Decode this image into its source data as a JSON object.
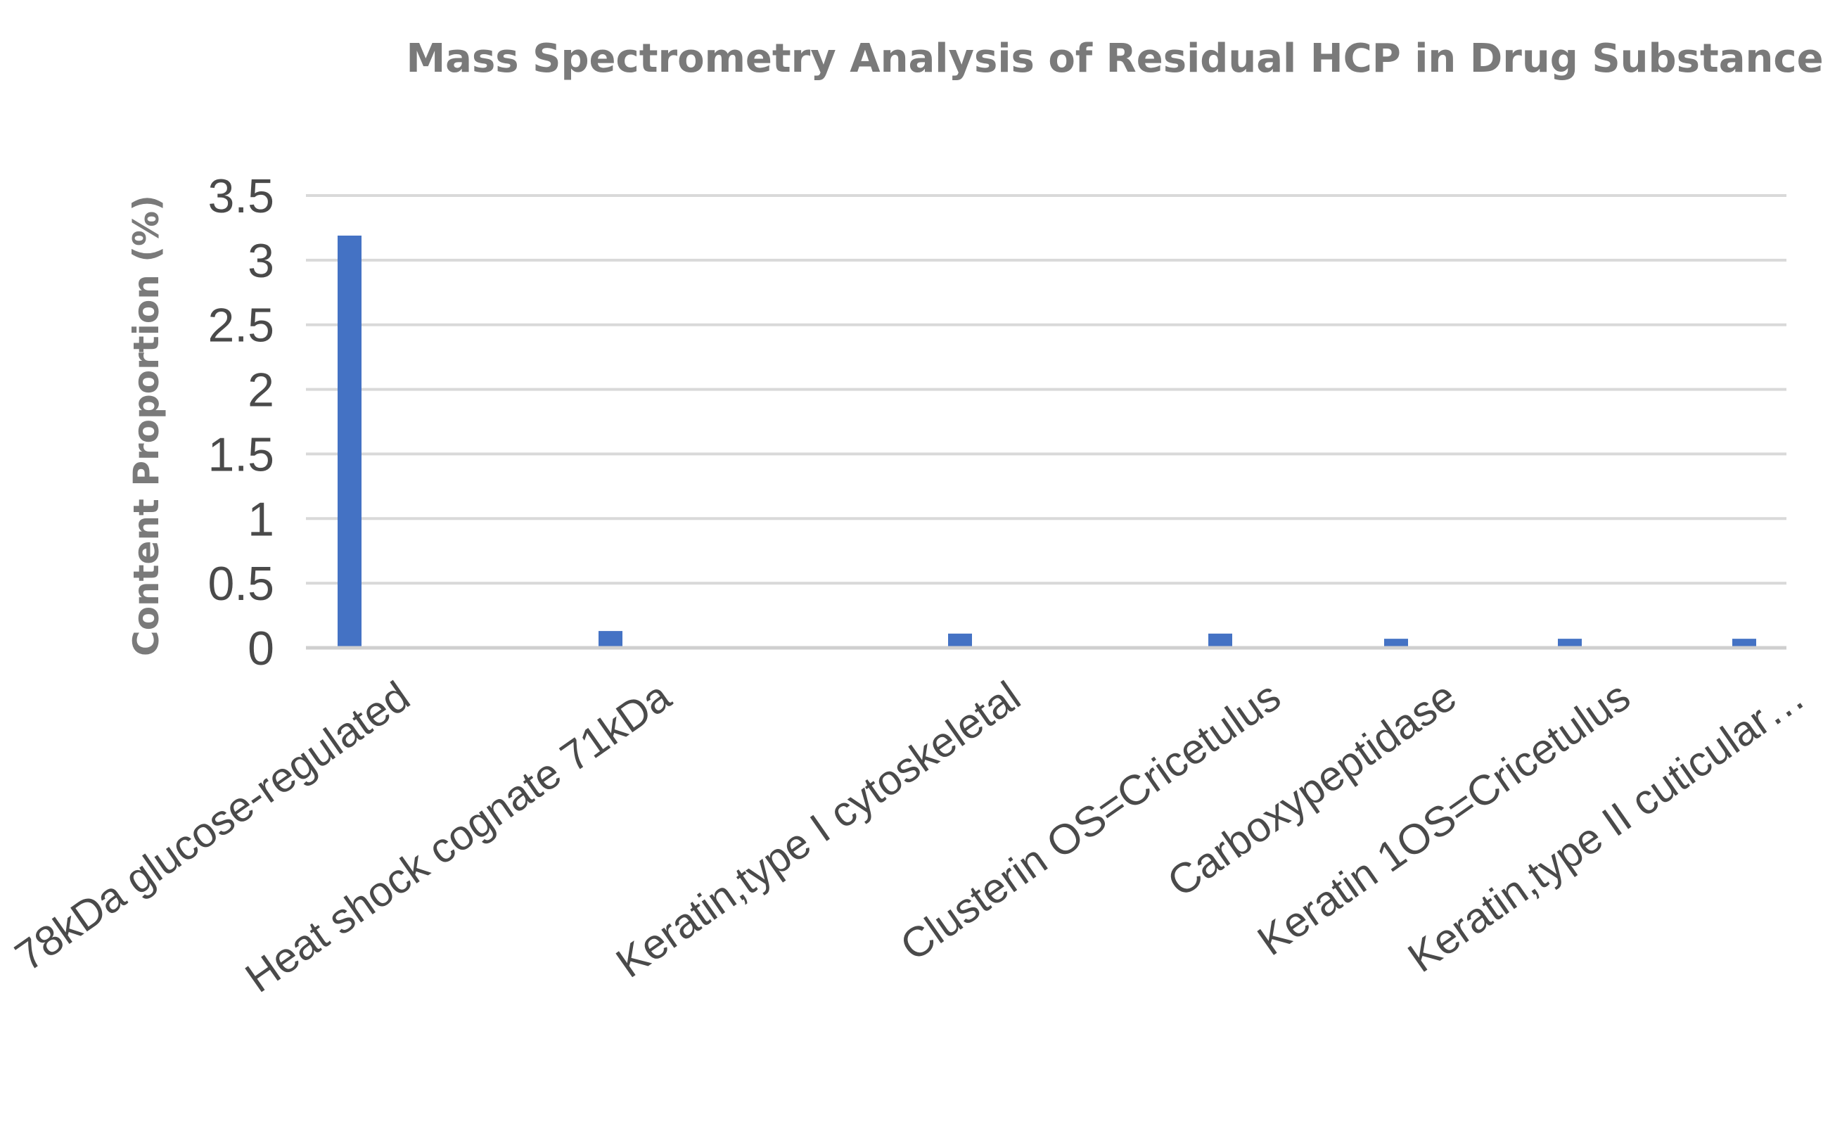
{
  "chart_data": {
    "type": "bar",
    "title": "Mass Spectrometry Analysis of Residual HCP in Drug Substance",
    "xlabel": "",
    "ylabel": "Content Proportion (%)",
    "ylim": [
      0,
      3.5
    ],
    "yticks": [
      "0",
      "0.5",
      "1",
      "1.5",
      "2",
      "2.5",
      "3",
      "3.5"
    ],
    "grid": true,
    "legend": "none",
    "bar_color": "#4472c4",
    "categories": [
      "78kDa glucose-regulated",
      "Heat shock cognate 71kDa",
      "Keratin,type I cytoskeletal",
      "Clusterin OS=Cricetulus",
      "Carboxypeptidase",
      "Keratin 1OS=Cricetulus",
      "Keratin,type II cuticular…"
    ],
    "values": [
      3.19,
      0.13,
      0.11,
      0.11,
      0.07,
      0.07,
      0.07
    ]
  }
}
